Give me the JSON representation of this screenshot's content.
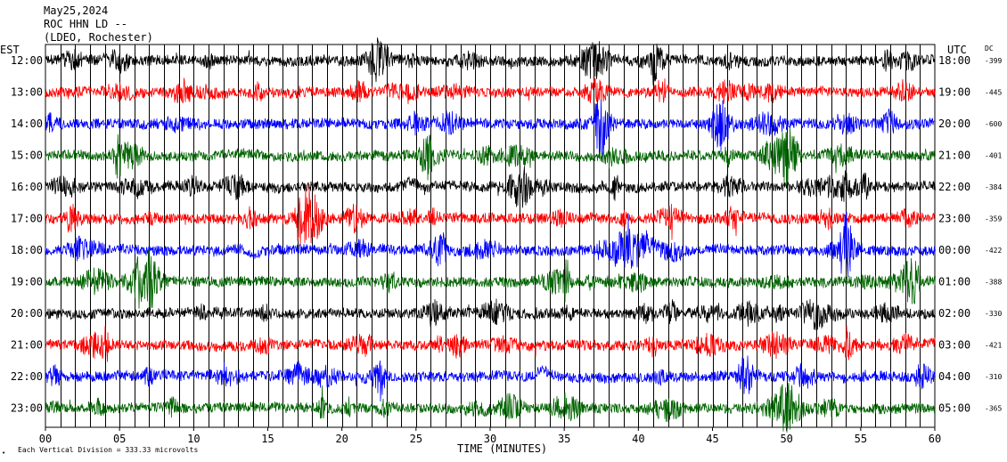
{
  "header": {
    "date": "May25,2024",
    "station": "ROC HHN LD --",
    "network": "(LDEO, Rochester)"
  },
  "labels": {
    "left_zone": "EST",
    "right_zone": "UTC",
    "dc_header": "DC",
    "x_axis_title": "TIME (MINUTES)",
    "scale_note": "Each Vertical Division =  333.33 microvolts",
    "corner_mark": "•"
  },
  "chart_data": {
    "type": "line",
    "title": "",
    "xlabel": "TIME (MINUTES)",
    "ylabel": "",
    "xlim": [
      0,
      60
    ],
    "x_ticks": [
      {
        "value": 0,
        "label": "00"
      },
      {
        "value": 5,
        "label": "05"
      },
      {
        "value": 10,
        "label": "10"
      },
      {
        "value": 15,
        "label": "15"
      },
      {
        "value": 20,
        "label": "20"
      },
      {
        "value": 25,
        "label": "25"
      },
      {
        "value": 30,
        "label": "30"
      },
      {
        "value": 35,
        "label": "35"
      },
      {
        "value": 40,
        "label": "40"
      },
      {
        "value": 45,
        "label": "45"
      },
      {
        "value": 50,
        "label": "50"
      },
      {
        "value": 55,
        "label": "55"
      },
      {
        "value": 60,
        "label": "60"
      }
    ],
    "minor_gridline_step_minutes": 1,
    "grid": true,
    "rows": [
      {
        "local": "12:00",
        "utc": "18:00",
        "dc": "-399",
        "color": "#000000"
      },
      {
        "local": "13:00",
        "utc": "19:00",
        "dc": "-445",
        "color": "#ff0000"
      },
      {
        "local": "14:00",
        "utc": "20:00",
        "dc": "-600",
        "color": "#0000ff"
      },
      {
        "local": "15:00",
        "utc": "21:00",
        "dc": "-401",
        "color": "#006400"
      },
      {
        "local": "16:00",
        "utc": "22:00",
        "dc": "-384",
        "color": "#000000"
      },
      {
        "local": "17:00",
        "utc": "23:00",
        "dc": "-359",
        "color": "#ff0000"
      },
      {
        "local": "18:00",
        "utc": "00:00",
        "dc": "-422",
        "color": "#0000ff"
      },
      {
        "local": "19:00",
        "utc": "01:00",
        "dc": "-388",
        "color": "#006400"
      },
      {
        "local": "20:00",
        "utc": "02:00",
        "dc": "-330",
        "color": "#000000"
      },
      {
        "local": "21:00",
        "utc": "03:00",
        "dc": "-421",
        "color": "#ff0000"
      },
      {
        "local": "22:00",
        "utc": "04:00",
        "dc": "-310",
        "color": "#0000ff"
      },
      {
        "local": "23:00",
        "utc": "05:00",
        "dc": "-365",
        "color": "#006400"
      }
    ],
    "events": [
      {
        "row": 4,
        "minute": 24.7,
        "kind": "bump"
      },
      {
        "row": 6,
        "minute": 14.0,
        "kind": "dip"
      },
      {
        "row": 6,
        "minute": 40.7,
        "kind": "step"
      },
      {
        "row": 10,
        "minute": 33.5,
        "kind": "bump"
      }
    ]
  }
}
